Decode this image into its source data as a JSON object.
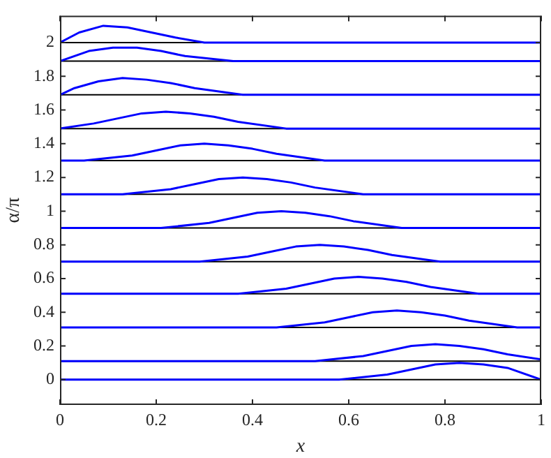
{
  "chart_data": {
    "type": "line",
    "xlabel": "x",
    "ylabel": "α/π",
    "xlim": [
      0,
      1
    ],
    "xticks": [
      0,
      0.2,
      0.4,
      0.6,
      0.8,
      1
    ],
    "ylim": [
      -0.15,
      2.16
    ],
    "yticks": [
      0,
      0.2,
      0.4,
      0.6,
      0.8,
      1,
      1.2,
      1.4,
      1.6,
      1.8,
      2
    ],
    "grid": false,
    "legend": false,
    "marker": "none",
    "line_style": "solid",
    "ref_lines": [
      {
        "axis": "y",
        "value": 0,
        "color": "#000000"
      },
      {
        "axis": "y",
        "value": 0.11,
        "color": "#000000"
      },
      {
        "axis": "y",
        "value": 0.31,
        "color": "#000000"
      },
      {
        "axis": "y",
        "value": 0.51,
        "color": "#000000"
      },
      {
        "axis": "y",
        "value": 0.7,
        "color": "#000000"
      },
      {
        "axis": "y",
        "value": 0.9,
        "color": "#000000"
      },
      {
        "axis": "y",
        "value": 1.1,
        "color": "#000000"
      },
      {
        "axis": "y",
        "value": 1.3,
        "color": "#000000"
      },
      {
        "axis": "y",
        "value": 1.49,
        "color": "#000000"
      },
      {
        "axis": "y",
        "value": 1.69,
        "color": "#000000"
      },
      {
        "axis": "y",
        "value": 1.89,
        "color": "#000000"
      },
      {
        "axis": "y",
        "value": 2,
        "color": "#000000"
      }
    ],
    "series": [
      {
        "color": "#0000ff",
        "x": [
          0,
          0.58,
          0.68,
          0.73,
          0.78,
          0.83,
          0.88,
          0.93,
          1
        ],
        "values": [
          0,
          0,
          0.03,
          0.06,
          0.09,
          0.1,
          0.09,
          0.07,
          0
        ]
      },
      {
        "color": "#0000ff",
        "x": [
          0,
          0.53,
          0.63,
          0.68,
          0.73,
          0.78,
          0.83,
          0.88,
          0.93,
          1
        ],
        "values": [
          0.11,
          0.11,
          0.14,
          0.17,
          0.2,
          0.21,
          0.2,
          0.18,
          0.15,
          0.12
        ]
      },
      {
        "color": "#0000ff",
        "x": [
          0,
          0.45,
          0.55,
          0.6,
          0.65,
          0.7,
          0.75,
          0.8,
          0.85,
          0.95,
          1
        ],
        "values": [
          0.31,
          0.31,
          0.34,
          0.37,
          0.4,
          0.41,
          0.4,
          0.38,
          0.35,
          0.31,
          0.31
        ]
      },
      {
        "color": "#0000ff",
        "x": [
          0,
          0.37,
          0.47,
          0.52,
          0.57,
          0.62,
          0.67,
          0.72,
          0.77,
          0.87,
          1
        ],
        "values": [
          0.51,
          0.51,
          0.54,
          0.57,
          0.6,
          0.61,
          0.6,
          0.58,
          0.55,
          0.51,
          0.51
        ]
      },
      {
        "color": "#0000ff",
        "x": [
          0,
          0.29,
          0.39,
          0.44,
          0.49,
          0.54,
          0.59,
          0.64,
          0.69,
          0.79,
          1
        ],
        "values": [
          0.7,
          0.7,
          0.73,
          0.76,
          0.79,
          0.8,
          0.79,
          0.77,
          0.74,
          0.7,
          0.7
        ]
      },
      {
        "color": "#0000ff",
        "x": [
          0,
          0.21,
          0.31,
          0.36,
          0.41,
          0.46,
          0.51,
          0.56,
          0.61,
          0.71,
          1
        ],
        "values": [
          0.9,
          0.9,
          0.93,
          0.96,
          0.99,
          1.0,
          0.99,
          0.97,
          0.94,
          0.9,
          0.9
        ]
      },
      {
        "color": "#0000ff",
        "x": [
          0,
          0.13,
          0.23,
          0.28,
          0.33,
          0.38,
          0.43,
          0.48,
          0.53,
          0.63,
          1
        ],
        "values": [
          1.1,
          1.1,
          1.13,
          1.16,
          1.19,
          1.2,
          1.19,
          1.17,
          1.14,
          1.1,
          1.1
        ]
      },
      {
        "color": "#0000ff",
        "x": [
          0,
          0.05,
          0.15,
          0.2,
          0.25,
          0.3,
          0.35,
          0.4,
          0.45,
          0.55,
          1
        ],
        "values": [
          1.3,
          1.3,
          1.33,
          1.36,
          1.39,
          1.4,
          1.39,
          1.37,
          1.34,
          1.3,
          1.3
        ]
      },
      {
        "color": "#0000ff",
        "x": [
          0,
          0.07,
          0.12,
          0.17,
          0.22,
          0.27,
          0.32,
          0.37,
          0.47,
          1
        ],
        "values": [
          1.49,
          1.52,
          1.55,
          1.58,
          1.59,
          1.58,
          1.56,
          1.53,
          1.49,
          1.49
        ]
      },
      {
        "color": "#0000ff",
        "x": [
          0,
          0.03,
          0.08,
          0.13,
          0.18,
          0.23,
          0.28,
          0.38,
          1
        ],
        "values": [
          1.69,
          1.73,
          1.77,
          1.79,
          1.78,
          1.76,
          1.73,
          1.69,
          1.69
        ]
      },
      {
        "color": "#0000ff",
        "x": [
          0,
          0.06,
          0.11,
          0.16,
          0.21,
          0.26,
          0.36,
          1
        ],
        "values": [
          1.89,
          1.95,
          1.97,
          1.97,
          1.95,
          1.92,
          1.89,
          1.89
        ]
      },
      {
        "color": "#0000ff",
        "x": [
          0,
          0.04,
          0.09,
          0.14,
          0.19,
          0.24,
          0.3,
          1
        ],
        "values": [
          2.0,
          2.06,
          2.1,
          2.09,
          2.06,
          2.03,
          2.0,
          2.0
        ]
      }
    ]
  }
}
